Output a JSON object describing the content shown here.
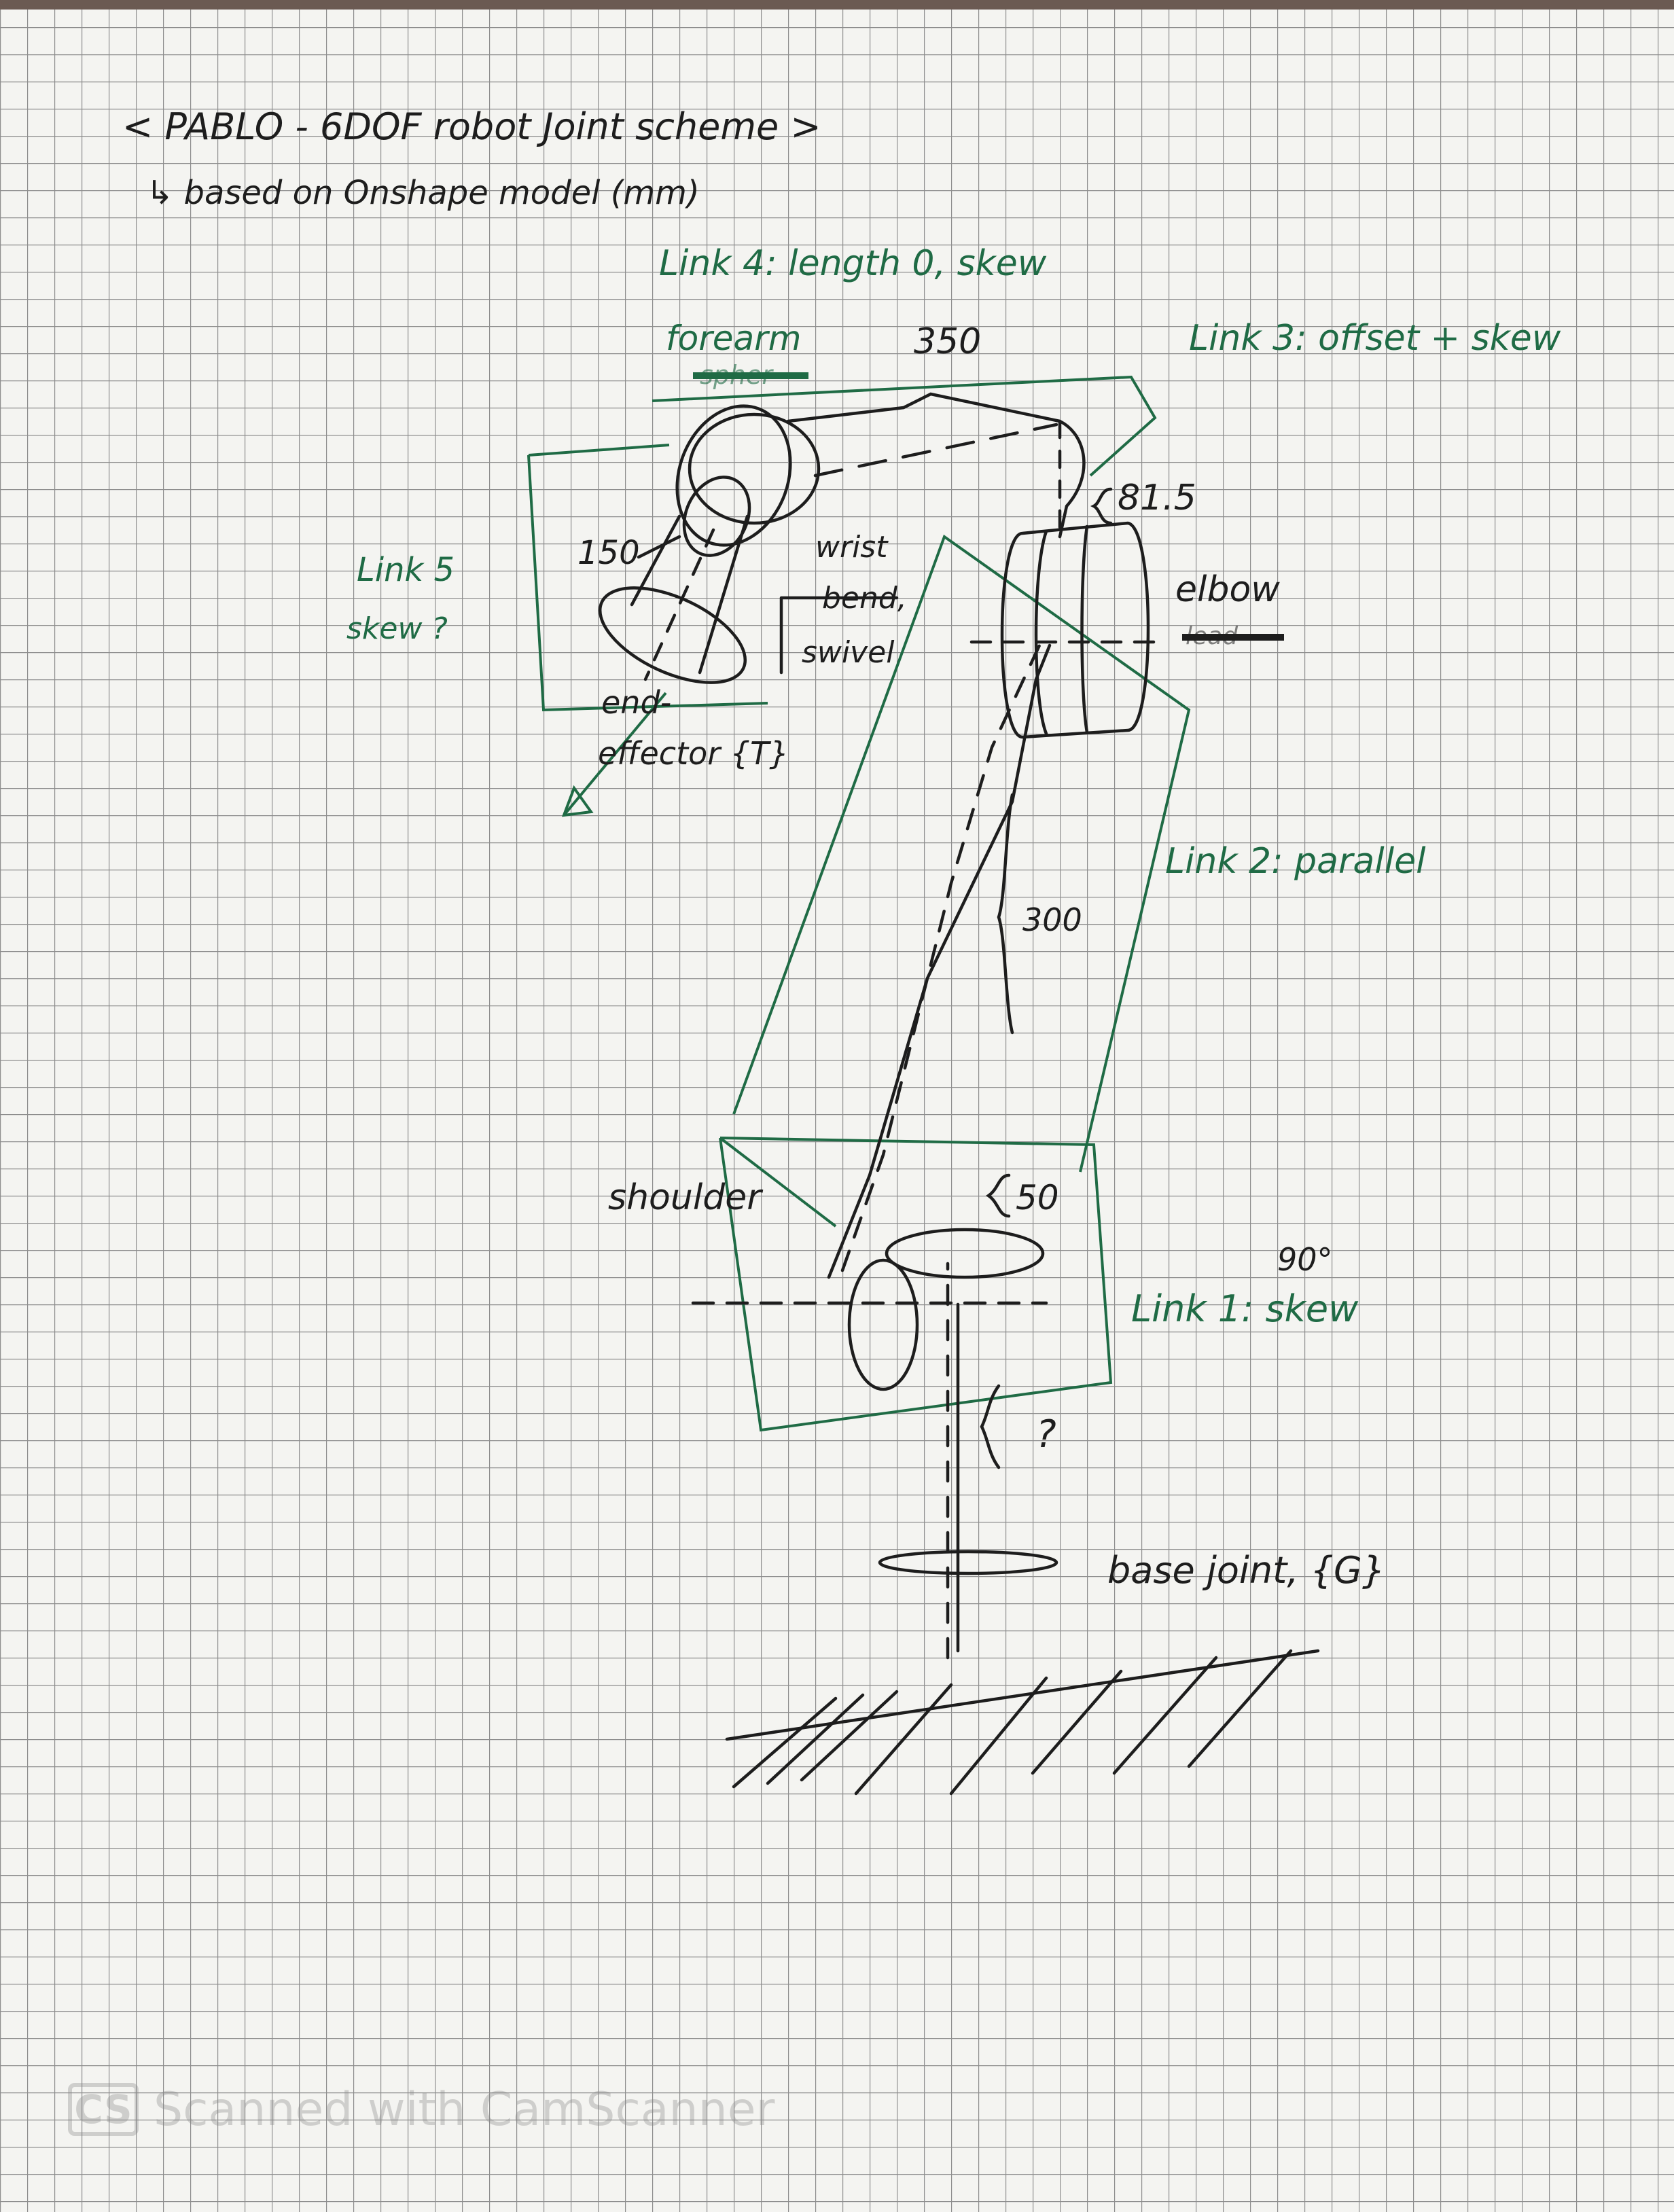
{
  "colors": {
    "paper": "#f4f4f1",
    "grid": "#8d8d8d",
    "ink_black": "#1d1d1d",
    "ink_green": "#1f6b45"
  },
  "title": {
    "line1": "< PABLO - 6DOF robot Joint scheme >",
    "line2": "↳ based on Onshape model (mm)"
  },
  "links": {
    "link4": "Link 4: length 0, skew",
    "link3": "Link 3: offset + skew",
    "link5_line1": "Link 5",
    "link5_line2": "skew ?",
    "link2": "Link 2: parallel",
    "link1": "Link 1: skew"
  },
  "joints": {
    "forearm": "forearm",
    "forearm_struck": "spher",
    "elbow": "elbow",
    "elbow_struck": "lead",
    "shoulder": "shoulder",
    "wrist_line1": "wrist",
    "wrist_line2": "bend,",
    "swivel": "swivel",
    "end_effector_line1": "end-",
    "end_effector_line2": "effector {T}",
    "base": "base joint, {G}"
  },
  "dimensions": {
    "d350": "350",
    "d81_5": "81.5",
    "d150": "150",
    "d300": "300",
    "d50": "50",
    "angle90": "90°",
    "unknown": "?"
  },
  "watermark": {
    "logo": "CS",
    "text": "Scanned with CamScanner"
  }
}
